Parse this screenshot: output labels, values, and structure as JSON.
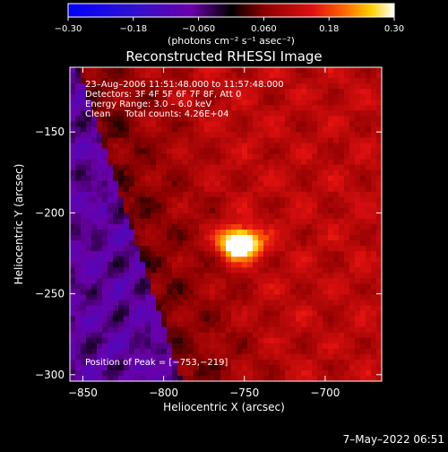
{
  "chart_data": {
    "type": "heatmap",
    "title": "Reconstructed RHESSI Image",
    "xlabel": "Heliocentric X (arcsec)",
    "ylabel": "Heliocentric Y (arcsec)",
    "xlim": [
      -858,
      -665
    ],
    "ylim": [
      -304,
      -110
    ],
    "xticks": [
      -850,
      -800,
      -750,
      -700
    ],
    "xtick_labels": [
      "−850",
      "−800",
      "−750",
      "−700"
    ],
    "yticks": [
      -150,
      -200,
      -250,
      -300
    ],
    "ytick_labels": [
      "−150",
      "−200",
      "−250",
      "−300"
    ],
    "colorbar": {
      "min": -0.3,
      "max": 0.3,
      "ticks": [
        -0.3,
        -0.18,
        -0.06,
        0.06,
        0.18,
        0.3
      ],
      "tick_labels": [
        "−0.30",
        "−0.18",
        "−0.060",
        "0.060",
        "0.18",
        "0.30"
      ],
      "units": "(photons cm⁻² s⁻¹ asec⁻²)"
    },
    "annotations": [
      "23–Aug–2006 11:51:48.000 to 11:57:48.000",
      "Detectors: 3F 4F 5F 6F 7F 8F, Att 0",
      "Energy Range: 3.0 – 6.0 keV",
      "Clean     Total counts: 4.26E+04"
    ],
    "peak_label": "Position of Peak = [−753,−219]",
    "peak": {
      "x": -753,
      "y": -219,
      "value": 0.3
    }
  },
  "footer": {
    "date": "7–May–2022 06:51"
  }
}
